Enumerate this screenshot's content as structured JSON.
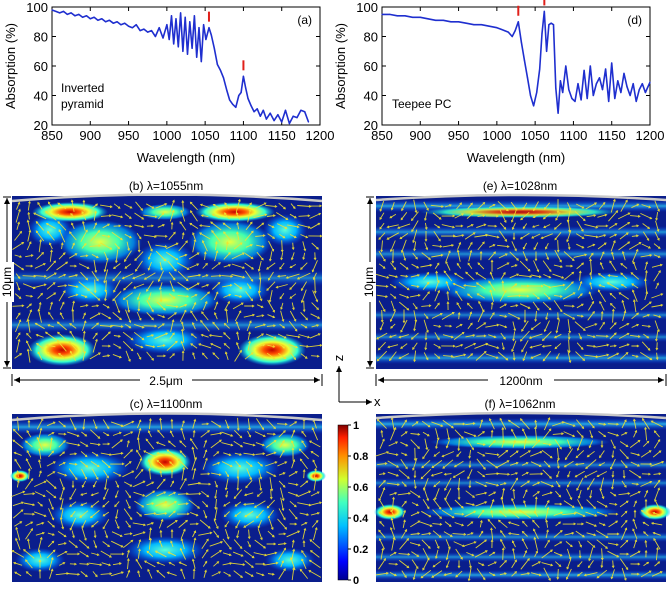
{
  "colors": {
    "curve": "#1f2fcf",
    "marker": "#e0201a",
    "arrow": "#f2e230",
    "axis": "#000000",
    "field_bg": "#0a1e8c",
    "boundary": "#c9c9c9"
  },
  "chart_data": [
    {
      "type": "line",
      "panel": "(a)",
      "label": [
        "Inverted",
        "pyramid"
      ],
      "xlabel": "Wavelength (nm)",
      "ylabel": "Absorption (%)",
      "xlim": [
        850,
        1200
      ],
      "ylim": [
        20,
        100
      ],
      "xticks": [
        "850",
        "900",
        "950",
        "1000",
        "1050",
        "1100",
        "1150",
        "1200"
      ],
      "yticks": [
        "20",
        "40",
        "60",
        "80",
        "100"
      ],
      "markers": [
        1055,
        1100
      ],
      "series": [
        {
          "name": "Inverted pyramid",
          "x": [
            850,
            855,
            860,
            865,
            870,
            875,
            880,
            885,
            890,
            895,
            900,
            905,
            910,
            915,
            920,
            925,
            930,
            935,
            940,
            945,
            950,
            955,
            960,
            965,
            970,
            975,
            980,
            985,
            990,
            995,
            1000,
            1003,
            1006,
            1009,
            1012,
            1015,
            1018,
            1021,
            1024,
            1027,
            1030,
            1033,
            1036,
            1039,
            1042,
            1045,
            1048,
            1051,
            1055,
            1058,
            1062,
            1066,
            1070,
            1074,
            1078,
            1082,
            1086,
            1090,
            1094,
            1097,
            1100,
            1103,
            1106,
            1110,
            1114,
            1118,
            1122,
            1126,
            1130,
            1135,
            1140,
            1145,
            1150,
            1155,
            1160,
            1165,
            1170,
            1175,
            1180,
            1185
          ],
          "y": [
            98,
            97,
            96,
            97,
            95,
            96,
            94,
            95,
            93,
            94,
            92,
            93,
            91,
            92,
            90,
            91,
            89,
            90,
            88,
            89,
            87,
            86,
            88,
            84,
            85,
            83,
            84,
            80,
            86,
            79,
            88,
            78,
            94,
            75,
            92,
            73,
            96,
            70,
            93,
            68,
            90,
            72,
            94,
            66,
            86,
            63,
            88,
            78,
            86,
            81,
            72,
            61,
            57,
            52,
            44,
            37,
            34,
            32,
            40,
            42,
            53,
            45,
            38,
            33,
            29,
            31,
            26,
            30,
            24,
            28,
            23,
            27,
            22,
            30,
            21,
            26,
            25,
            30,
            29,
            22
          ]
        }
      ]
    },
    {
      "type": "line",
      "panel": "(d)",
      "label": [
        "Teepee PC"
      ],
      "xlabel": "Wavelength (nm)",
      "ylabel": "Absorption (%)",
      "xlim": [
        850,
        1200
      ],
      "ylim": [
        20,
        100
      ],
      "xticks": [
        "850",
        "900",
        "950",
        "1000",
        "1050",
        "1100",
        "1150",
        "1200"
      ],
      "yticks": [
        "20",
        "40",
        "60",
        "80",
        "100"
      ],
      "markers": [
        1028,
        1062
      ],
      "series": [
        {
          "name": "Teepee PC",
          "x": [
            850,
            860,
            870,
            880,
            890,
            900,
            910,
            920,
            930,
            940,
            950,
            960,
            970,
            980,
            990,
            1000,
            1005,
            1010,
            1015,
            1020,
            1024,
            1028,
            1032,
            1036,
            1040,
            1044,
            1048,
            1052,
            1056,
            1059,
            1062,
            1065,
            1068,
            1071,
            1074,
            1077,
            1080,
            1083,
            1086,
            1090,
            1094,
            1098,
            1102,
            1106,
            1110,
            1114,
            1118,
            1122,
            1126,
            1130,
            1134,
            1138,
            1142,
            1146,
            1150,
            1154,
            1158,
            1162,
            1166,
            1170,
            1174,
            1178,
            1182,
            1186,
            1190,
            1194,
            1200
          ],
          "y": [
            95,
            95,
            94,
            94,
            93,
            93,
            92,
            91,
            91,
            90,
            90,
            89,
            88,
            88,
            87,
            86,
            85,
            84,
            83,
            80,
            84,
            90,
            76,
            64,
            52,
            40,
            33,
            42,
            58,
            82,
            97,
            70,
            88,
            89,
            88,
            45,
            28,
            50,
            42,
            60,
            44,
            38,
            36,
            48,
            37,
            57,
            38,
            60,
            40,
            48,
            52,
            44,
            58,
            36,
            62,
            38,
            50,
            42,
            55,
            46,
            40,
            48,
            36,
            44,
            48,
            42,
            49
          ]
        }
      ]
    }
  ],
  "panels": {
    "b": {
      "title": "(b)  λ=1055nm",
      "vertical_scale": "10μm",
      "horizontal_scale": "2.5μm"
    },
    "e": {
      "title": "(e)  λ=1028nm",
      "vertical_scale": "10μm",
      "horizontal_scale": "1200nm"
    },
    "c": {
      "title": "(c)  λ=1100nm"
    },
    "f": {
      "title": "(f)  λ=1062nm"
    }
  },
  "axes_labels": {
    "z": "z",
    "x": "x"
  },
  "colorbar": {
    "ticks": [
      "0",
      "0.2",
      "0.4",
      "0.6",
      "0.8",
      "1"
    ],
    "values": [
      0,
      0.2,
      0.4,
      0.6,
      0.8,
      1
    ]
  }
}
